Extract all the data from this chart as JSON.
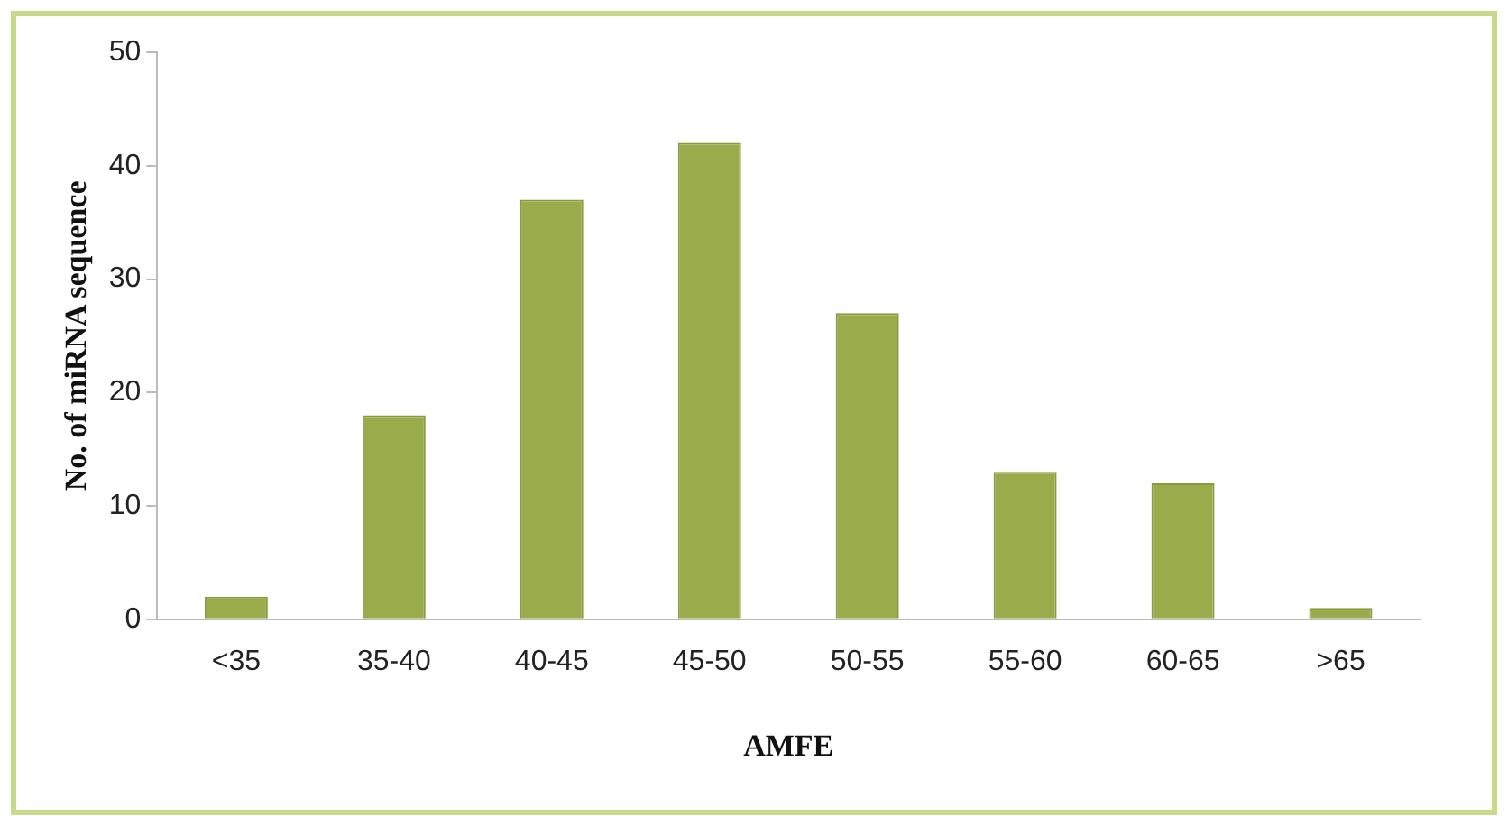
{
  "chart_data": {
    "type": "bar",
    "xlabel": "AMFE",
    "ylabel": "No. of miRNA sequence",
    "categories": [
      "<35",
      "35-40",
      "40-45",
      "45-50",
      "50-55",
      "55-60",
      "60-65",
      ">65"
    ],
    "values": [
      2,
      18,
      37,
      42,
      27,
      13,
      12,
      1
    ],
    "color": "#9aab4c",
    "ylim": [
      0,
      50
    ],
    "yticks": [
      0,
      10,
      20,
      30,
      40,
      50
    ],
    "grid": false,
    "legend": false
  }
}
